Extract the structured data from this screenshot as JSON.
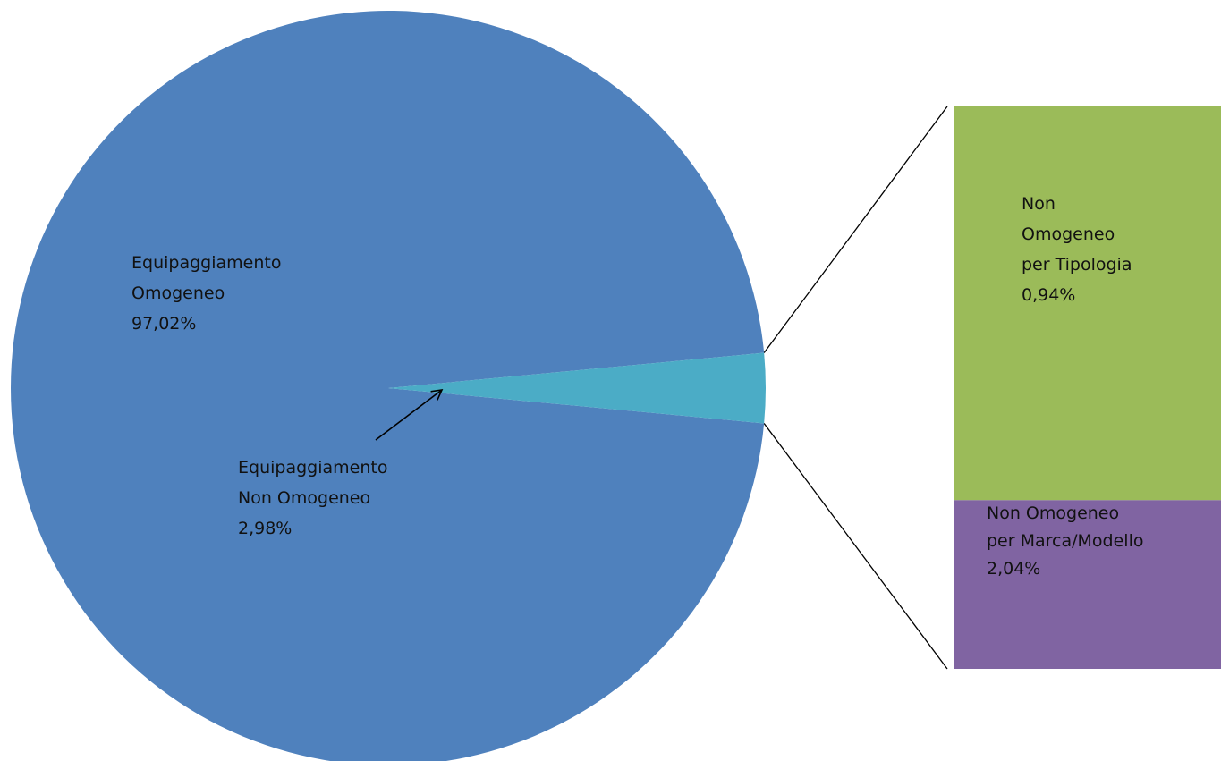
{
  "chart_data": {
    "type": "bar-of-pie",
    "pie": {
      "slices": [
        {
          "key": "omogeneo",
          "label_lines": [
            "Equipaggiamento",
            "Omogeneo",
            "97,02%"
          ],
          "value": 97.02,
          "color": "#4f81bd"
        },
        {
          "key": "non_omogeneo",
          "label_lines": [
            "Equipaggiamento",
            "Non Omogeneo",
            "2,98%"
          ],
          "value": 2.98,
          "color": "#4bacc6"
        }
      ]
    },
    "bar": {
      "segments": [
        {
          "key": "tipologia",
          "label_lines": [
            "Non",
            "Omogeneo",
            "per Tipologia",
            "0,94%"
          ],
          "value": 0.94,
          "color": "#9bbb59"
        },
        {
          "key": "marca",
          "label_lines": [
            "Non Omogeneo",
            "per Marca/Modello",
            "2,04%"
          ],
          "value": 2.04,
          "color": "#8064a2"
        }
      ]
    }
  }
}
